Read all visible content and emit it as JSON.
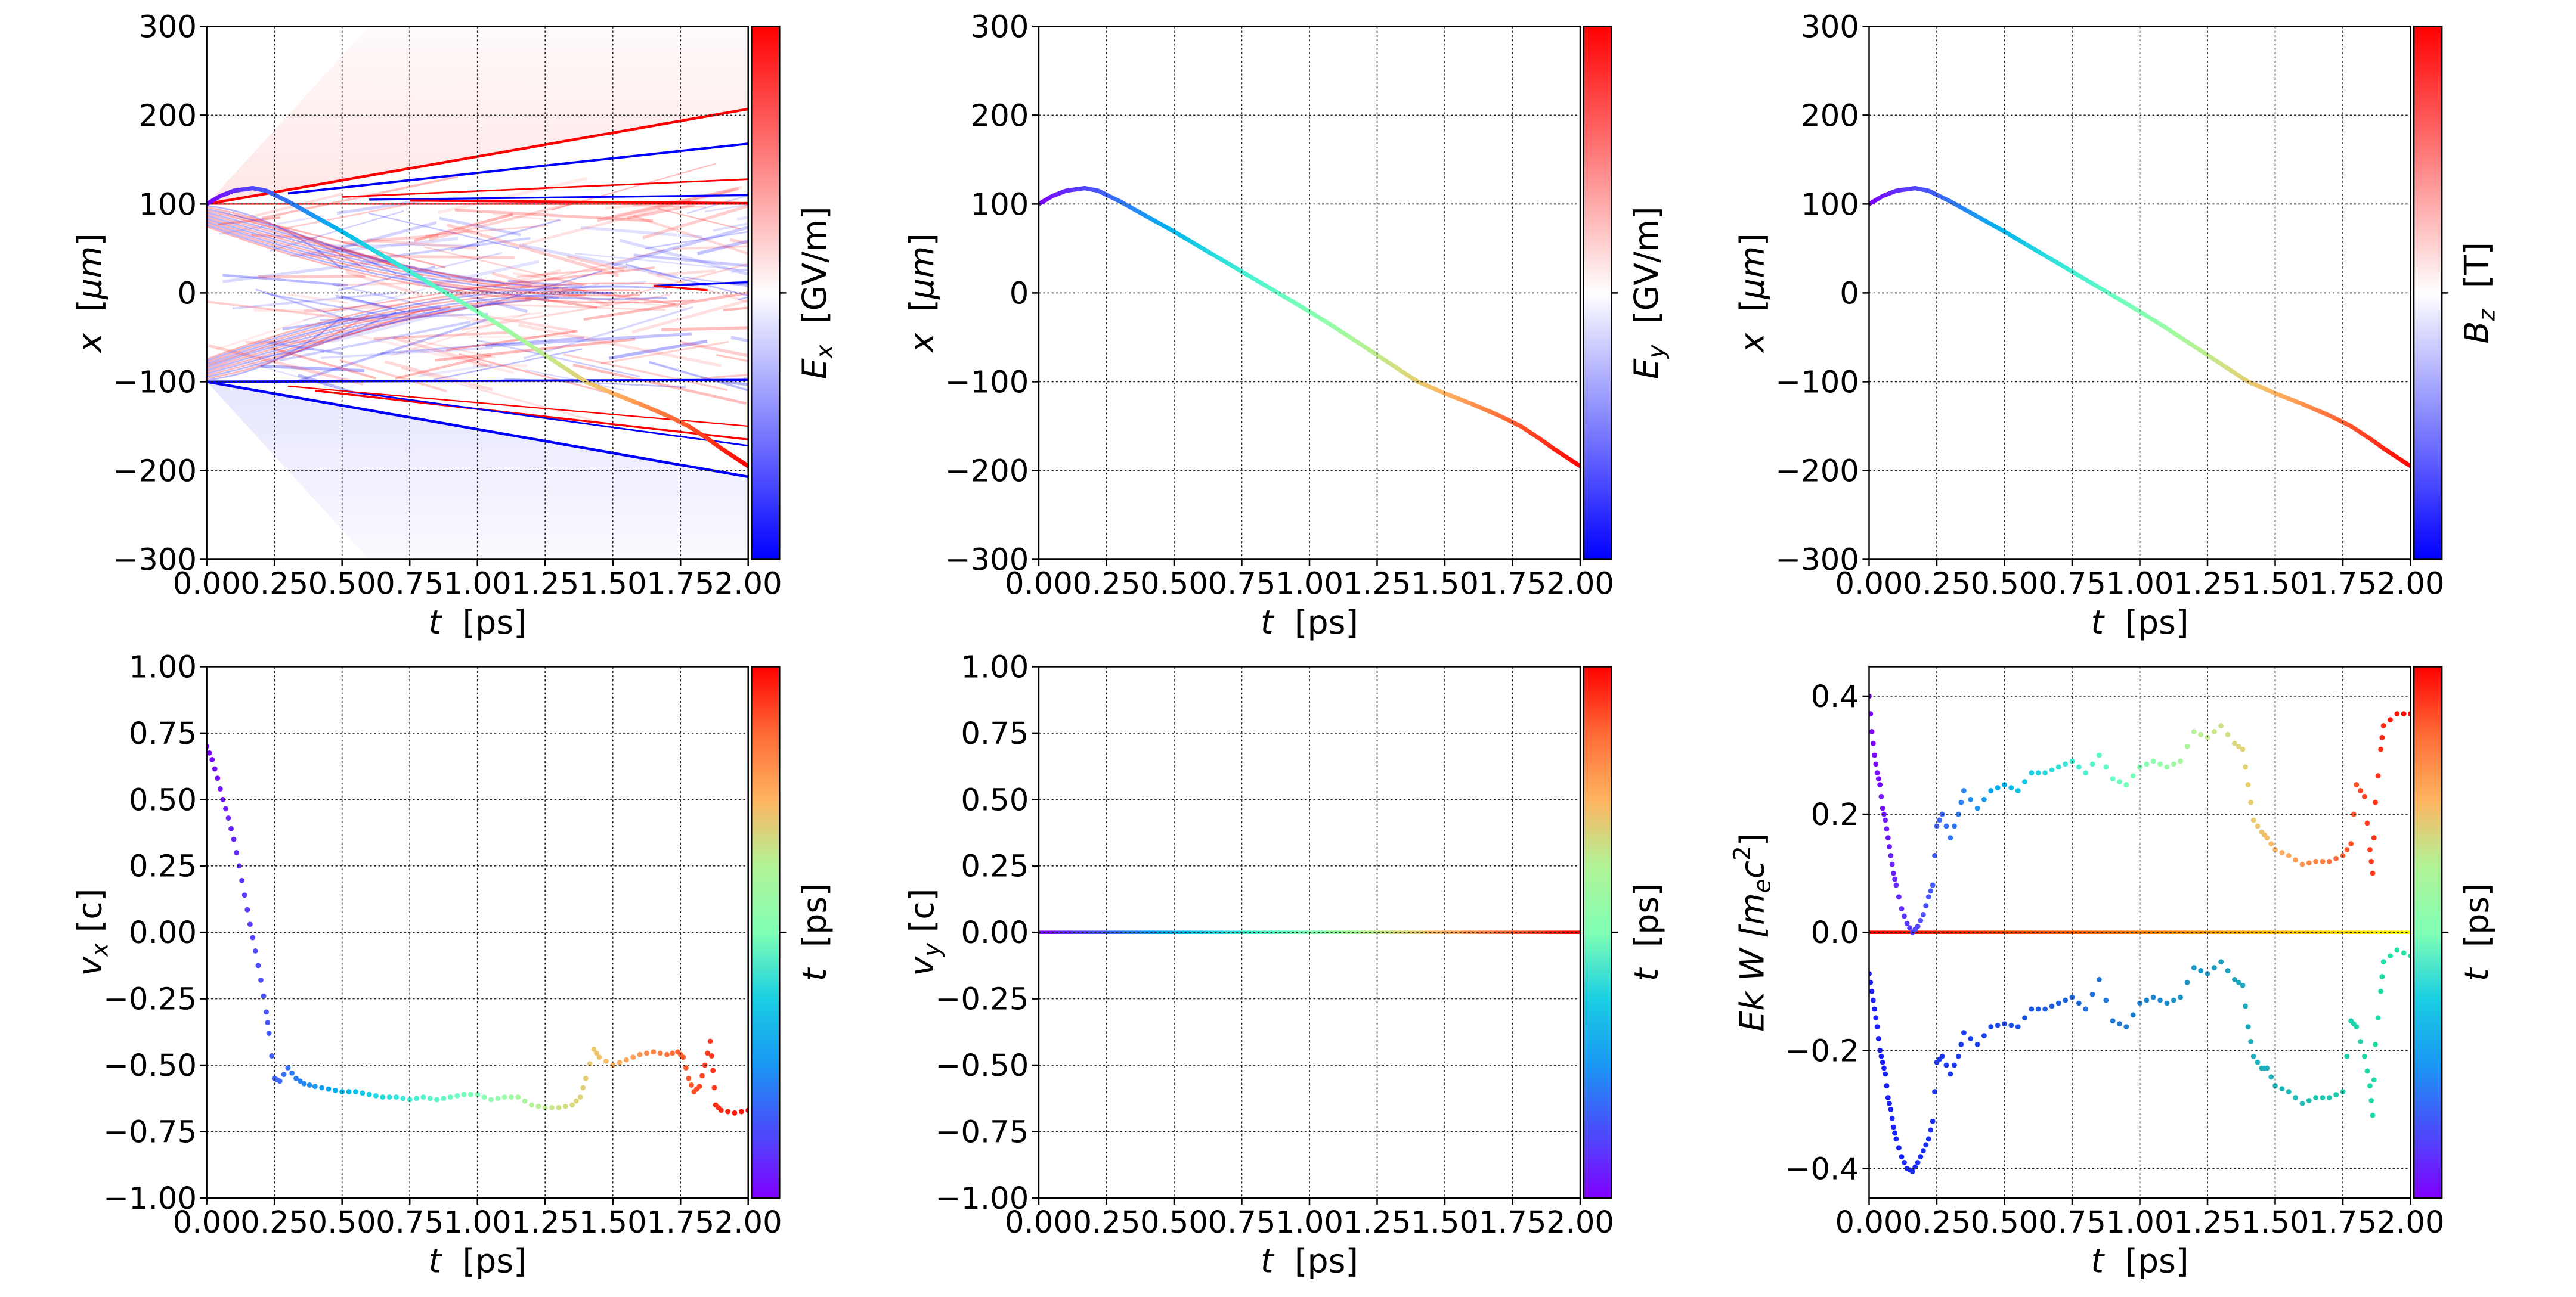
{
  "chart_data": [
    {
      "type": "heatmap",
      "xlabel": {
        "var": "t",
        "unit": "[ps]"
      },
      "ylabel": {
        "var": "x",
        "unit": "[μm]"
      },
      "xlim": [
        0,
        2
      ],
      "ylim": [
        -300,
        300
      ],
      "xticks": [
        "0.00",
        "0.25",
        "0.50",
        "0.75",
        "1.00",
        "1.25",
        "1.50",
        "1.75",
        "2.00"
      ],
      "yticks": [
        {
          "v": 300,
          "l": "300"
        },
        {
          "v": 200,
          "l": "200"
        },
        {
          "v": 100,
          "l": "100"
        },
        {
          "v": 0,
          "l": "0"
        },
        {
          "v": -100,
          "l": "−100"
        },
        {
          "v": -200,
          "l": "−200"
        },
        {
          "v": -300,
          "l": "−300"
        }
      ],
      "grid": true,
      "colorbar": {
        "var": "E",
        "sub": "x",
        "unit": "[GV/m]",
        "cmap": "bwr"
      },
      "field_features": "E_x field map: red front from x=100 to x=207 and blue front from x=-100 to x=-207 over 0–2 ps, dense red/blue fringes between",
      "series": [
        {
          "type": "line",
          "cmap": "rainbow",
          "t": [
            0,
            0.05,
            0.1,
            0.17,
            0.22,
            0.3,
            0.4,
            0.5,
            0.6,
            0.7,
            0.8,
            0.9,
            1.0,
            1.1,
            1.2,
            1.3,
            1.4,
            1.5,
            1.6,
            1.7,
            1.78,
            1.85,
            1.9,
            2.0
          ],
          "y": [
            100,
            109,
            115,
            118,
            115,
            103,
            86,
            69,
            51,
            33,
            15,
            -3,
            -21,
            -40,
            -60,
            -80,
            -100,
            -113,
            -125,
            -138,
            -150,
            -164,
            -175,
            -195
          ]
        }
      ]
    },
    {
      "type": "line",
      "xlabel": {
        "var": "t",
        "unit": "[ps]"
      },
      "ylabel": {
        "var": "x",
        "unit": "[μm]"
      },
      "xlim": [
        0,
        2
      ],
      "ylim": [
        -300,
        300
      ],
      "xticks": [
        "0.00",
        "0.25",
        "0.50",
        "0.75",
        "1.00",
        "1.25",
        "1.50",
        "1.75",
        "2.00"
      ],
      "yticks": [
        {
          "v": 300,
          "l": "300"
        },
        {
          "v": 200,
          "l": "200"
        },
        {
          "v": 100,
          "l": "100"
        },
        {
          "v": 0,
          "l": "0"
        },
        {
          "v": -100,
          "l": "−100"
        },
        {
          "v": -200,
          "l": "−200"
        },
        {
          "v": -300,
          "l": "−300"
        }
      ],
      "grid": true,
      "colorbar": {
        "var": "E",
        "sub": "y",
        "unit": "[GV/m]",
        "cmap": "bwr"
      },
      "series": [
        {
          "type": "line",
          "cmap": "rainbow",
          "t": [
            0,
            0.05,
            0.1,
            0.17,
            0.22,
            0.3,
            0.4,
            0.5,
            0.6,
            0.7,
            0.8,
            0.9,
            1.0,
            1.1,
            1.2,
            1.3,
            1.4,
            1.5,
            1.6,
            1.7,
            1.78,
            1.85,
            1.9,
            2.0
          ],
          "y": [
            100,
            109,
            115,
            118,
            115,
            103,
            86,
            69,
            51,
            33,
            15,
            -3,
            -21,
            -40,
            -60,
            -80,
            -100,
            -113,
            -125,
            -138,
            -150,
            -164,
            -175,
            -195
          ]
        }
      ]
    },
    {
      "type": "line",
      "xlabel": {
        "var": "t",
        "unit": "[ps]"
      },
      "ylabel": {
        "var": "x",
        "unit": "[μm]"
      },
      "xlim": [
        0,
        2
      ],
      "ylim": [
        -300,
        300
      ],
      "xticks": [
        "0.00",
        "0.25",
        "0.50",
        "0.75",
        "1.00",
        "1.25",
        "1.50",
        "1.75",
        "2.00"
      ],
      "yticks": [
        {
          "v": 300,
          "l": "300"
        },
        {
          "v": 200,
          "l": "200"
        },
        {
          "v": 100,
          "l": "100"
        },
        {
          "v": 0,
          "l": "0"
        },
        {
          "v": -100,
          "l": "−100"
        },
        {
          "v": -200,
          "l": "−200"
        },
        {
          "v": -300,
          "l": "−300"
        }
      ],
      "grid": true,
      "colorbar": {
        "var": "B",
        "sub": "z",
        "unit": "[T]",
        "cmap": "bwr"
      },
      "series": [
        {
          "type": "line",
          "cmap": "rainbow",
          "t": [
            0,
            0.05,
            0.1,
            0.17,
            0.22,
            0.3,
            0.4,
            0.5,
            0.6,
            0.7,
            0.8,
            0.9,
            1.0,
            1.1,
            1.2,
            1.3,
            1.4,
            1.5,
            1.6,
            1.7,
            1.78,
            1.85,
            1.9,
            2.0
          ],
          "y": [
            100,
            109,
            115,
            118,
            115,
            103,
            86,
            69,
            51,
            33,
            15,
            -3,
            -21,
            -40,
            -60,
            -80,
            -100,
            -113,
            -125,
            -138,
            -150,
            -164,
            -175,
            -195
          ]
        }
      ]
    },
    {
      "type": "scatter",
      "xlabel": {
        "var": "t",
        "unit": "[ps]"
      },
      "ylabel": {
        "var": "v",
        "sub": "x",
        "unit": "[c]"
      },
      "xlim": [
        0,
        2
      ],
      "ylim": [
        -1,
        1
      ],
      "xticks": [
        "0.00",
        "0.25",
        "0.50",
        "0.75",
        "1.00",
        "1.25",
        "1.50",
        "1.75",
        "2.00"
      ],
      "yticks": [
        {
          "v": 1,
          "l": "1.00"
        },
        {
          "v": 0.75,
          "l": "0.75"
        },
        {
          "v": 0.5,
          "l": "0.50"
        },
        {
          "v": 0.25,
          "l": "0.25"
        },
        {
          "v": 0,
          "l": "0.00"
        },
        {
          "v": -0.25,
          "l": "−0.25"
        },
        {
          "v": -0.5,
          "l": "−0.50"
        },
        {
          "v": -0.75,
          "l": "−0.75"
        },
        {
          "v": -1,
          "l": "−1.00"
        }
      ],
      "grid": true,
      "colorbar": {
        "var": "t",
        "unit": "[ps]",
        "cmap": "rainbow"
      },
      "series": [
        {
          "type": "scatter",
          "cmap": "rainbow",
          "t": [
            0,
            0.02,
            0.04,
            0.06,
            0.08,
            0.1,
            0.12,
            0.14,
            0.16,
            0.18,
            0.2,
            0.22,
            0.23,
            0.25,
            0.27,
            0.3,
            0.33,
            0.36,
            0.4,
            0.45,
            0.5,
            0.55,
            0.6,
            0.65,
            0.7,
            0.75,
            0.8,
            0.85,
            0.9,
            0.95,
            1.0,
            1.05,
            1.1,
            1.15,
            1.2,
            1.25,
            1.3,
            1.35,
            1.38,
            1.4,
            1.43,
            1.45,
            1.5,
            1.55,
            1.6,
            1.65,
            1.7,
            1.74,
            1.76,
            1.78,
            1.8,
            1.82,
            1.84,
            1.86,
            1.87,
            1.88,
            1.9,
            1.95,
            2.0
          ],
          "y": [
            0.7,
            0.65,
            0.58,
            0.5,
            0.43,
            0.35,
            0.25,
            0.14,
            0.03,
            -0.07,
            -0.18,
            -0.3,
            -0.38,
            -0.55,
            -0.56,
            -0.51,
            -0.55,
            -0.57,
            -0.58,
            -0.59,
            -0.6,
            -0.6,
            -0.61,
            -0.62,
            -0.62,
            -0.63,
            -0.62,
            -0.63,
            -0.62,
            -0.61,
            -0.61,
            -0.63,
            -0.62,
            -0.62,
            -0.65,
            -0.66,
            -0.66,
            -0.65,
            -0.62,
            -0.55,
            -0.44,
            -0.47,
            -0.5,
            -0.48,
            -0.46,
            -0.45,
            -0.46,
            -0.45,
            -0.47,
            -0.55,
            -0.6,
            -0.58,
            -0.5,
            -0.41,
            -0.52,
            -0.65,
            -0.67,
            -0.68,
            -0.67
          ]
        }
      ]
    },
    {
      "type": "line",
      "xlabel": {
        "var": "t",
        "unit": "[ps]"
      },
      "ylabel": {
        "var": "v",
        "sub": "y",
        "unit": "[c]"
      },
      "xlim": [
        0,
        2
      ],
      "ylim": [
        -1,
        1
      ],
      "xticks": [
        "0.00",
        "0.25",
        "0.50",
        "0.75",
        "1.00",
        "1.25",
        "1.50",
        "1.75",
        "2.00"
      ],
      "yticks": [
        {
          "v": 1,
          "l": "1.00"
        },
        {
          "v": 0.75,
          "l": "0.75"
        },
        {
          "v": 0.5,
          "l": "0.50"
        },
        {
          "v": 0.25,
          "l": "0.25"
        },
        {
          "v": 0,
          "l": "0.00"
        },
        {
          "v": -0.25,
          "l": "−0.25"
        },
        {
          "v": -0.5,
          "l": "−0.50"
        },
        {
          "v": -0.75,
          "l": "−0.75"
        },
        {
          "v": -1,
          "l": "−1.00"
        }
      ],
      "grid": true,
      "colorbar": {
        "var": "t",
        "unit": "[ps]",
        "cmap": "rainbow"
      },
      "series": [
        {
          "type": "line",
          "cmap": "rainbow",
          "t": [
            0,
            0.5,
            1.0,
            1.5,
            2.0
          ],
          "y": [
            0,
            0,
            0,
            0,
            0
          ]
        }
      ]
    },
    {
      "type": "scatter",
      "xlabel": {
        "var": "t",
        "unit": "[ps]"
      },
      "ylabel": {
        "pre": "Ek W [m",
        "sub": "e",
        "mid": "c",
        "sup": "2",
        "post": "]"
      },
      "xlim": [
        0,
        2
      ],
      "ylim": [
        -0.45,
        0.45
      ],
      "xticks": [
        "0.00",
        "0.25",
        "0.50",
        "0.75",
        "1.00",
        "1.25",
        "1.50",
        "1.75",
        "2.00"
      ],
      "yticks": [
        {
          "v": 0.4,
          "l": "0.4"
        },
        {
          "v": 0.2,
          "l": "0.2"
        },
        {
          "v": 0,
          "l": "0.0"
        },
        {
          "v": -0.2,
          "l": "−0.2"
        },
        {
          "v": -0.4,
          "l": "−0.4"
        }
      ],
      "grid": true,
      "colorbar": {
        "var": "t",
        "unit": "[ps]",
        "cmap": "rainbow"
      },
      "series": [
        {
          "type": "line",
          "cmap": "autumn",
          "t": [
            0,
            0.5,
            1.0,
            1.5,
            2.0
          ],
          "y": [
            0,
            0,
            0,
            0,
            0
          ]
        },
        {
          "type": "scatter",
          "cmap": "rainbow",
          "t": [
            0,
            0.01,
            0.02,
            0.03,
            0.04,
            0.05,
            0.06,
            0.07,
            0.08,
            0.09,
            0.1,
            0.12,
            0.14,
            0.16,
            0.18,
            0.2,
            0.22,
            0.235,
            0.25,
            0.27,
            0.3,
            0.33,
            0.35,
            0.4,
            0.45,
            0.5,
            0.55,
            0.6,
            0.65,
            0.7,
            0.75,
            0.8,
            0.85,
            0.9,
            0.95,
            1.0,
            1.05,
            1.1,
            1.15,
            1.2,
            1.25,
            1.3,
            1.35,
            1.38,
            1.4,
            1.42,
            1.45,
            1.47,
            1.5,
            1.55,
            1.6,
            1.65,
            1.7,
            1.75,
            1.78,
            1.8,
            1.83,
            1.85,
            1.86,
            1.87,
            1.89,
            1.9,
            1.95,
            2.0
          ],
          "y": [
            0.4,
            0.34,
            0.3,
            0.27,
            0.25,
            0.21,
            0.19,
            0.16,
            0.13,
            0.1,
            0.08,
            0.04,
            0.015,
            0.0,
            0.01,
            0.03,
            0.06,
            0.08,
            0.18,
            0.2,
            0.16,
            0.2,
            0.24,
            0.21,
            0.24,
            0.25,
            0.24,
            0.27,
            0.27,
            0.28,
            0.29,
            0.27,
            0.3,
            0.26,
            0.25,
            0.28,
            0.29,
            0.28,
            0.29,
            0.34,
            0.33,
            0.35,
            0.32,
            0.31,
            0.25,
            0.19,
            0.17,
            0.16,
            0.14,
            0.13,
            0.115,
            0.12,
            0.12,
            0.13,
            0.15,
            0.25,
            0.23,
            0.14,
            0.1,
            0.22,
            0.31,
            0.35,
            0.37,
            0.37
          ]
        },
        {
          "type": "scatter",
          "color_from": "#1a1aff",
          "color_to": "#20e8a0",
          "t": [
            0,
            0.01,
            0.02,
            0.03,
            0.04,
            0.05,
            0.06,
            0.07,
            0.08,
            0.09,
            0.1,
            0.12,
            0.14,
            0.16,
            0.18,
            0.2,
            0.22,
            0.235,
            0.25,
            0.27,
            0.3,
            0.33,
            0.35,
            0.4,
            0.45,
            0.5,
            0.55,
            0.6,
            0.65,
            0.7,
            0.75,
            0.8,
            0.85,
            0.9,
            0.95,
            1.0,
            1.05,
            1.1,
            1.15,
            1.2,
            1.25,
            1.3,
            1.35,
            1.38,
            1.4,
            1.42,
            1.45,
            1.47,
            1.5,
            1.55,
            1.6,
            1.65,
            1.7,
            1.75,
            1.78,
            1.8,
            1.83,
            1.85,
            1.86,
            1.87,
            1.89,
            1.9,
            1.95,
            2.0
          ],
          "y": [
            -0.07,
            -0.1,
            -0.13,
            -0.16,
            -0.2,
            -0.22,
            -0.24,
            -0.28,
            -0.3,
            -0.33,
            -0.35,
            -0.38,
            -0.4,
            -0.405,
            -0.39,
            -0.37,
            -0.35,
            -0.32,
            -0.22,
            -0.21,
            -0.24,
            -0.21,
            -0.17,
            -0.19,
            -0.16,
            -0.155,
            -0.16,
            -0.13,
            -0.13,
            -0.12,
            -0.11,
            -0.13,
            -0.08,
            -0.15,
            -0.16,
            -0.12,
            -0.11,
            -0.12,
            -0.11,
            -0.06,
            -0.07,
            -0.05,
            -0.08,
            -0.09,
            -0.16,
            -0.21,
            -0.23,
            -0.23,
            -0.26,
            -0.27,
            -0.29,
            -0.28,
            -0.28,
            -0.27,
            -0.15,
            -0.16,
            -0.21,
            -0.26,
            -0.31,
            -0.19,
            -0.1,
            -0.05,
            -0.03,
            -0.04
          ]
        }
      ]
    }
  ]
}
